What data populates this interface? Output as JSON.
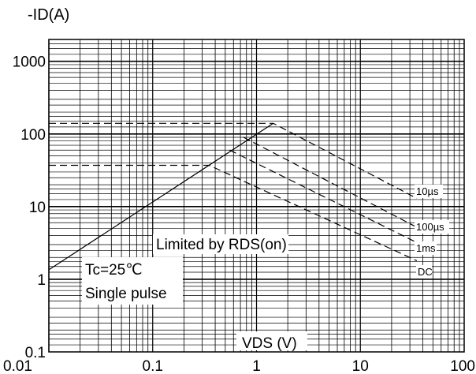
{
  "chart_data": {
    "type": "line",
    "title": "",
    "xlabel": "VDS (V)",
    "ylabel": "-ID(A)",
    "xscale": "log",
    "yscale": "log",
    "xlim": [
      0.01,
      100
    ],
    "ylim": [
      0.1,
      2000
    ],
    "grid": true,
    "x_ticks": [
      "0.01",
      "0.1",
      "1",
      "10",
      "100"
    ],
    "y_ticks": [
      "0.1",
      "1",
      "10",
      "100",
      "1000"
    ],
    "annotations": {
      "limited_by": "Limited by RDS(on)",
      "tc": "Tc=25℃",
      "single_pulse": "Single pulse"
    },
    "series": [
      {
        "name": "Limited by RDS(on)",
        "style": "solid",
        "points": [
          [
            0.01,
            1.35
          ],
          [
            1.45,
            140
          ]
        ]
      },
      {
        "name": "10µs",
        "style": "dashed",
        "points": [
          [
            0.01,
            140
          ],
          [
            1.45,
            140
          ],
          [
            35,
            13
          ]
        ]
      },
      {
        "name": "100µs",
        "style": "dashed",
        "points": [
          [
            0.75,
            90
          ],
          [
            35,
            5.2
          ]
        ]
      },
      {
        "name": "1ms",
        "style": "dashed",
        "points": [
          [
            0.55,
            60
          ],
          [
            35,
            3.2
          ]
        ]
      },
      {
        "name": "DC",
        "style": "dashed",
        "points": [
          [
            0.01,
            37
          ],
          [
            0.35,
            37
          ],
          [
            35,
            1.8
          ]
        ]
      }
    ],
    "series_labels": [
      "10µs",
      "100µs",
      "1ms",
      "DC"
    ]
  }
}
